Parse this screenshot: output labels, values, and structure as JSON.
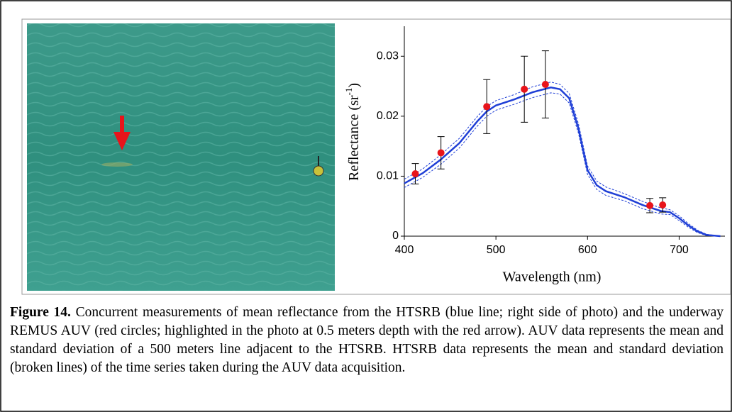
{
  "chart_data": {
    "type": "line",
    "xlabel": "Wavelength (nm)",
    "ylabel": [
      "Reflectance (sr",
      "-1",
      ")"
    ],
    "xlim": [
      400,
      750
    ],
    "xticks": [
      400,
      500,
      600,
      700
    ],
    "ylim": [
      0,
      0.035
    ],
    "yticks": [
      0,
      0.01,
      0.02,
      0.03
    ],
    "x": [
      400,
      420,
      440,
      460,
      480,
      490,
      500,
      520,
      540,
      560,
      570,
      580,
      590,
      600,
      610,
      620,
      640,
      660,
      680,
      690,
      700,
      710,
      720,
      730,
      745
    ],
    "series": [
      {
        "color": "#1f3fd6",
        "dash": false,
        "values": [
          0.0088,
          0.0105,
          0.0128,
          0.0155,
          0.0192,
          0.0208,
          0.0218,
          0.0228,
          0.024,
          0.0248,
          0.0245,
          0.023,
          0.018,
          0.011,
          0.0085,
          0.0075,
          0.0065,
          0.0052,
          0.0042,
          0.004,
          0.003,
          0.0018,
          0.0008,
          0.0002,
          0
        ]
      },
      {
        "color": "#1f3fd6",
        "dash": true,
        "values": [
          0.0095,
          0.0112,
          0.0136,
          0.0163,
          0.02,
          0.0216,
          0.0226,
          0.0236,
          0.0249,
          0.0257,
          0.0253,
          0.0238,
          0.0188,
          0.0117,
          0.0092,
          0.0082,
          0.0071,
          0.0058,
          0.0047,
          0.0044,
          0.0034,
          0.0021,
          0.001,
          0.0003,
          0
        ]
      },
      {
        "color": "#1f3fd6",
        "dash": true,
        "values": [
          0.0081,
          0.0098,
          0.012,
          0.0147,
          0.0184,
          0.02,
          0.021,
          0.022,
          0.0231,
          0.0239,
          0.0237,
          0.0222,
          0.0172,
          0.0103,
          0.0078,
          0.0068,
          0.0059,
          0.0046,
          0.0037,
          0.0036,
          0.0026,
          0.0015,
          0.0006,
          0.0001,
          0
        ]
      }
    ],
    "points": {
      "color": "#e8141b",
      "x": [
        412,
        440,
        490,
        531,
        554,
        668,
        682
      ],
      "values": [
        0.0104,
        0.0139,
        0.0216,
        0.0245,
        0.0253,
        0.0051,
        0.0052
      ],
      "errors": [
        0.0017,
        0.0027,
        0.0045,
        0.0055,
        0.0056,
        0.0012,
        0.0012
      ]
    }
  },
  "caption": {
    "label": "Figure 14.",
    "text": "Concurrent measurements of mean reflectance from the HTSRB (blue line; right side of photo) and the underway REMUS AUV (red circles; highlighted in the photo at 0.5 meters depth with the red arrow). AUV data represents the mean and standard deviation of a 500 meters line adjacent to the HTSRB. HTSRB data represents the mean and standard deviation (broken lines) of the time series taken during the AUV data acquisition."
  }
}
